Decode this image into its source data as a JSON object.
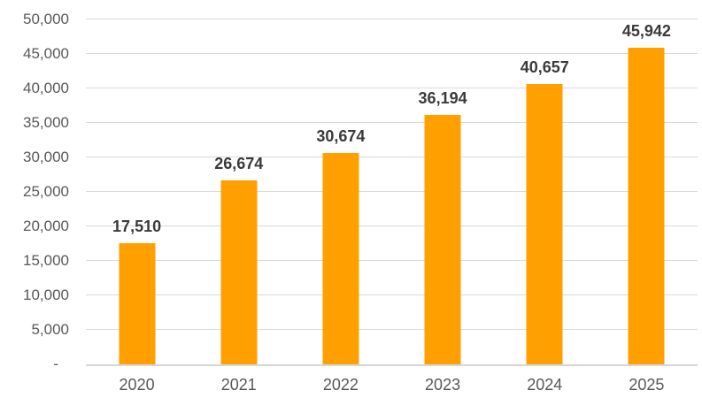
{
  "chart_data": {
    "type": "bar",
    "title": "",
    "xlabel": "",
    "ylabel": "",
    "categories": [
      "2020",
      "2021",
      "2022",
      "2023",
      "2024",
      "2025"
    ],
    "values": [
      17510,
      26674,
      30674,
      36194,
      40657,
      45942
    ],
    "data_labels": [
      "17,510",
      "26,674",
      "30,674",
      "36,194",
      "40,657",
      "45,942"
    ],
    "ylim": [
      0,
      50000
    ],
    "ytick_interval": 5000,
    "ytick_labels": [
      "-",
      "5,000",
      "10,000",
      "15,000",
      "20,000",
      "25,000",
      "30,000",
      "35,000",
      "40,000",
      "45,000",
      "50,000"
    ],
    "grid": true,
    "legend": "none",
    "colors": {
      "bar_fill": "#FFA000",
      "gridline": "#D9D9D9",
      "axis_line": "#D6D6D6",
      "axis_text": "#595959",
      "data_label_text": "#3A3A3A",
      "background": "#FFFFFF"
    }
  }
}
